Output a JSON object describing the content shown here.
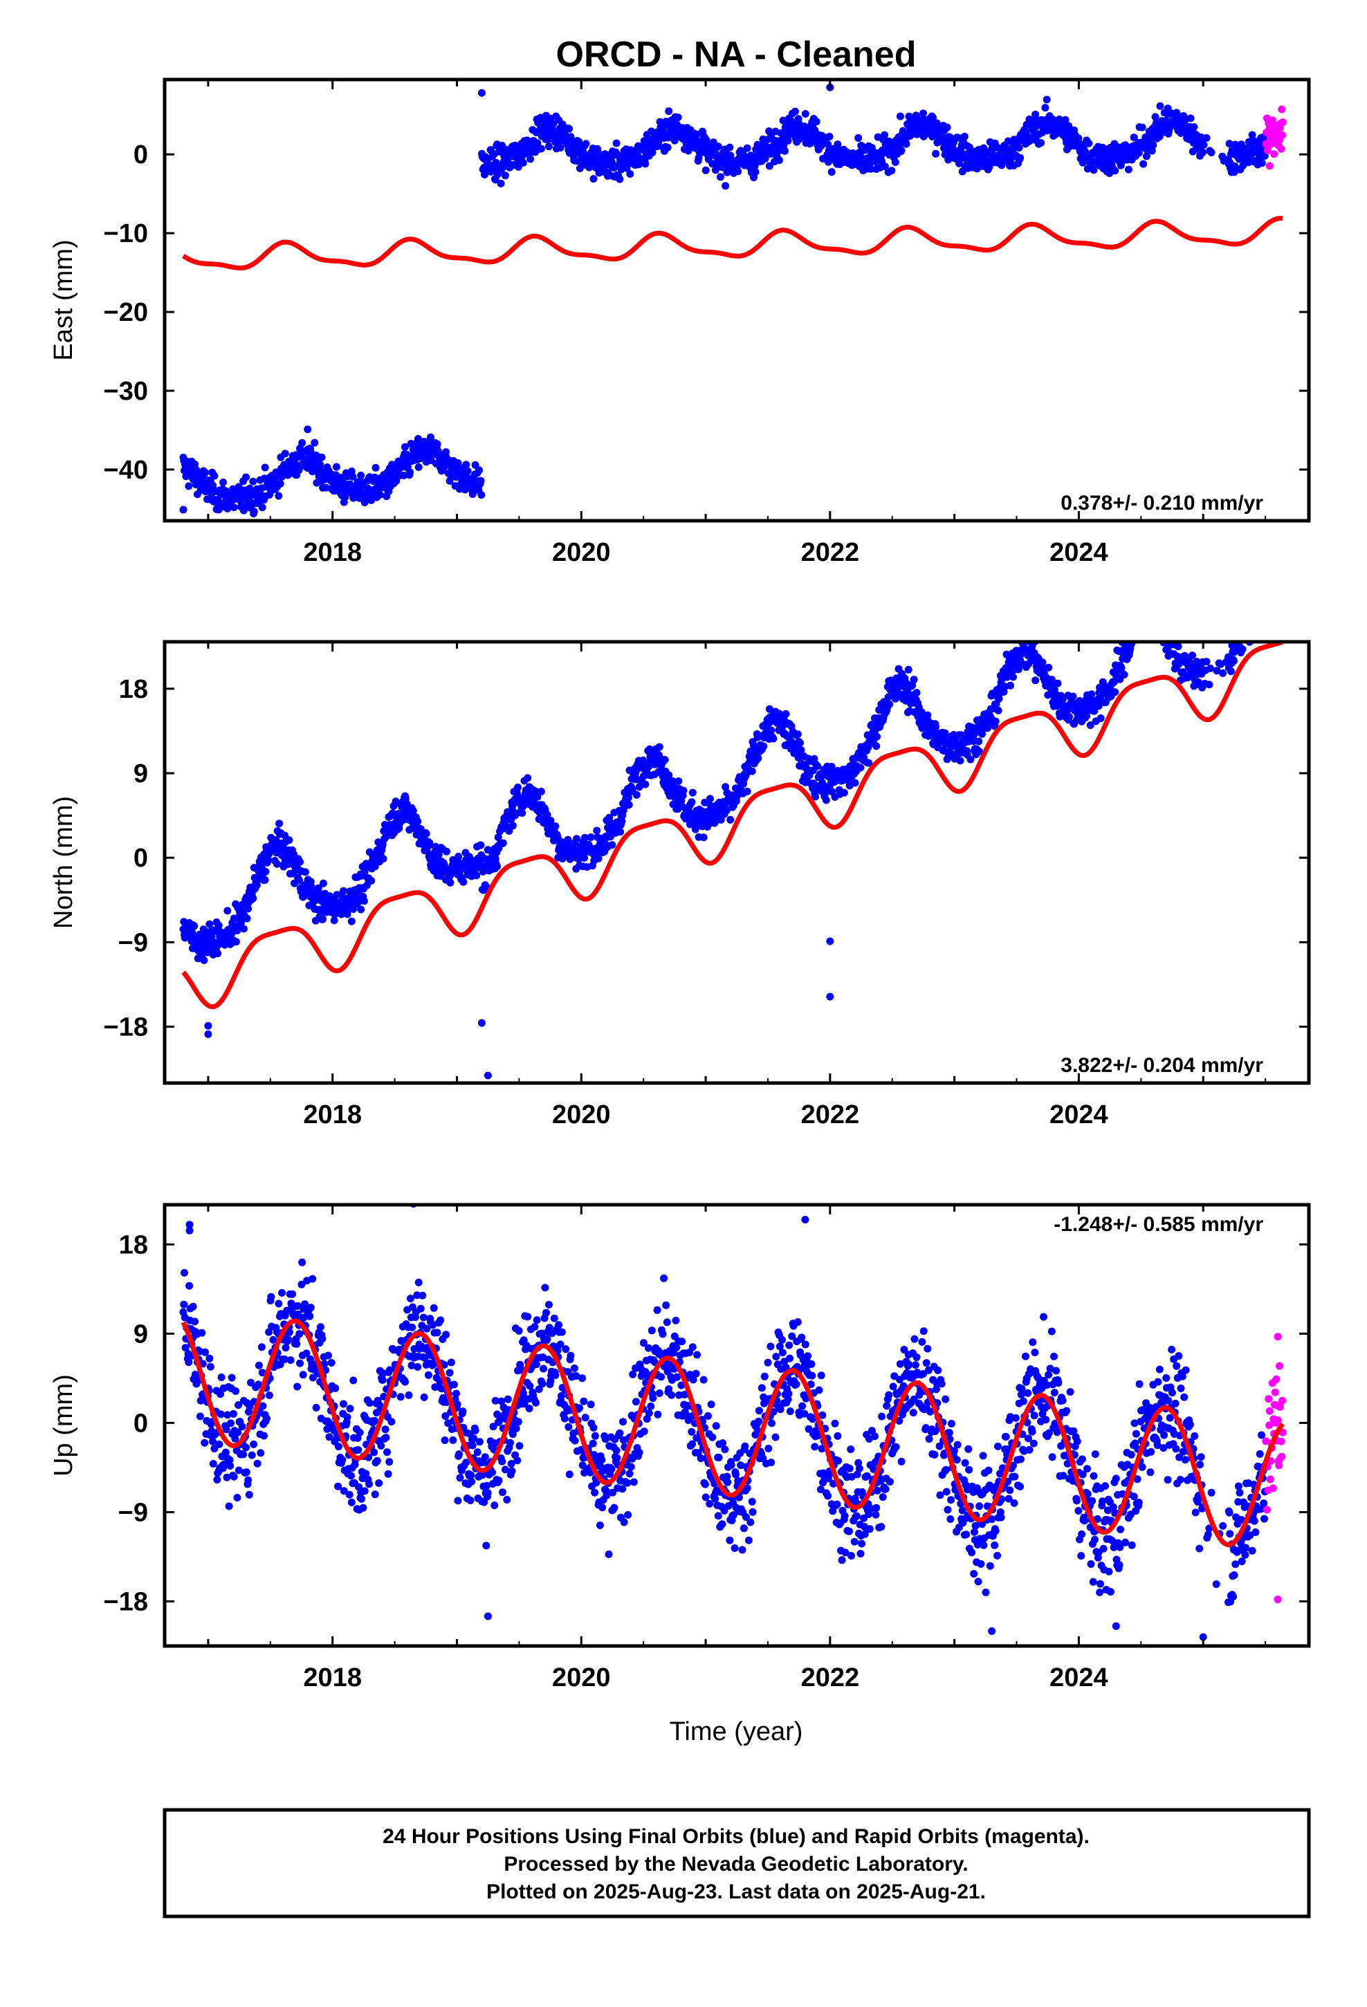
{
  "title": "ORCD  - NA - Cleaned",
  "colors": {
    "final": "#0000ff",
    "rapid": "#ff00ff",
    "model": "#ff0000",
    "frame": "#000000"
  },
  "xlabel": "Time (year)",
  "footer": {
    "line1": "24 Hour Positions Using Final Orbits (blue) and Rapid Orbits (magenta).",
    "line2": "Processed by the Nevada Geodetic Laboratory.",
    "line3": "Plotted on 2025-Aug-23. Last data on 2025-Aug-21."
  },
  "chart_data": [
    {
      "type": "scatter",
      "name": "east",
      "ylabel": "East (mm)",
      "rate_label": "0.378+/- 0.210 mm/yr",
      "rate_position": "bottom-right",
      "xlim": [
        2016.65,
        2025.85
      ],
      "ylim": [
        -46.5,
        9.5
      ],
      "xticks": [
        2018,
        2020,
        2022,
        2024
      ],
      "xtick_labels": [
        "2018",
        "2020",
        "2022",
        "2024"
      ],
      "yticks": [
        0,
        -10,
        -20,
        -30,
        -40
      ],
      "ytick_labels": [
        "0",
        "−10",
        "−20",
        "−30",
        "−40"
      ],
      "data_start": 2016.8,
      "data_end": 2025.64,
      "rapid_start": 2025.5,
      "gaps": [
        [
          2025.0,
          2025.2
        ]
      ],
      "offsets": [
        {
          "year": 2019.2,
          "before": -41.0,
          "after": 1.0
        }
      ],
      "daily_scatter_mm": 1.4,
      "annual_amplitude_mm": 2.2,
      "annual_phase_year": 0.75,
      "semiannual_amplitude_mm": 0.4,
      "model": {
        "rate": 0.378,
        "value_at_2016_8": -13.3,
        "annual_amplitude": 1.4,
        "annual_phase_year": 0.65,
        "semiannual_amplitude": 0.5,
        "semiannual_phase_year": 0.1
      },
      "outliers": [
        [
          2016.8,
          -45.1
        ],
        [
          2019.2,
          7.8
        ],
        [
          2022.0,
          8.5
        ],
        [
          2017.8,
          -34.9
        ]
      ]
    },
    {
      "type": "scatter",
      "name": "north",
      "ylabel": "North (mm)",
      "rate_label": "3.822+/- 0.204 mm/yr",
      "rate_position": "bottom-right",
      "xlim": [
        2016.65,
        2025.85
      ],
      "ylim": [
        -24.0,
        23.0
      ],
      "xticks": [
        2018,
        2020,
        2022,
        2024
      ],
      "xtick_labels": [
        "2018",
        "2020",
        "2022",
        "2024"
      ],
      "yticks": [
        18,
        9,
        0,
        -9,
        -18
      ],
      "ytick_labels": [
        "18",
        "9",
        "0",
        "−9",
        "−18"
      ],
      "data_start": 2016.8,
      "data_end": 2025.64,
      "rapid_start": 2025.5,
      "gaps": [
        [
          2025.0,
          2025.2
        ]
      ],
      "offsets": [
        {
          "year": 2019.2,
          "before": -5.0,
          "after": -7.0
        }
      ],
      "daily_scatter_mm": 1.3,
      "annual_amplitude_mm": 4.0,
      "annual_phase_year": 0.55,
      "semiannual_amplitude_mm": 0.8,
      "base_rate": 3.822,
      "base_value_at_2016_8": -8.0,
      "model": {
        "rate": 3.822,
        "value_at_2016_8": -13.0,
        "annual_amplitude": 3.0,
        "annual_phase_year": 0.55,
        "semiannual_amplitude": 0.8,
        "semiannual_phase_year": 0.3
      },
      "outliers": [
        [
          2017.0,
          -17.9
        ],
        [
          2017.0,
          -18.8
        ],
        [
          2019.2,
          -17.6
        ],
        [
          2019.25,
          -23.2
        ],
        [
          2022.0,
          -14.8
        ],
        [
          2022.0,
          -8.9
        ]
      ]
    },
    {
      "type": "scatter",
      "name": "up",
      "ylabel": "Up (mm)",
      "rate_label": "-1.248+/- 0.585 mm/yr",
      "rate_position": "top-right",
      "xlim": [
        2016.65,
        2025.85
      ],
      "ylim": [
        -22.5,
        22.0
      ],
      "xticks": [
        2018,
        2020,
        2022,
        2024
      ],
      "xtick_labels": [
        "2018",
        "2020",
        "2022",
        "2024"
      ],
      "yticks": [
        18,
        9,
        0,
        -9,
        -18
      ],
      "ytick_labels": [
        "18",
        "9",
        "0",
        "−9",
        "−18"
      ],
      "data_start": 2016.8,
      "data_end": 2025.64,
      "rapid_start": 2025.5,
      "gaps": [
        [
          2025.0,
          2025.2
        ]
      ],
      "offsets": [],
      "daily_scatter_mm": 4.0,
      "annual_amplitude_mm": 7.0,
      "annual_phase_year": 0.7,
      "semiannual_amplitude_mm": 0.0,
      "base_rate": -1.248,
      "base_value_at_2016_8": 4.8,
      "model": {
        "rate": -1.248,
        "value_at_2016_8": 4.8,
        "annual_amplitude": 6.6,
        "annual_phase_year": 0.7,
        "semiannual_amplitude": 0.0,
        "semiannual_phase_year": 0.0
      },
      "outliers": [
        [
          2016.85,
          20.0
        ],
        [
          2016.85,
          19.4
        ],
        [
          2018.65,
          22.1
        ],
        [
          2019.25,
          -19.5
        ],
        [
          2021.8,
          20.5
        ],
        [
          2023.3,
          -21.0
        ],
        [
          2024.3,
          -20.5
        ],
        [
          2025.0,
          -21.6
        ],
        [
          2025.6,
          8.7
        ],
        [
          2025.6,
          -17.8
        ]
      ]
    }
  ]
}
